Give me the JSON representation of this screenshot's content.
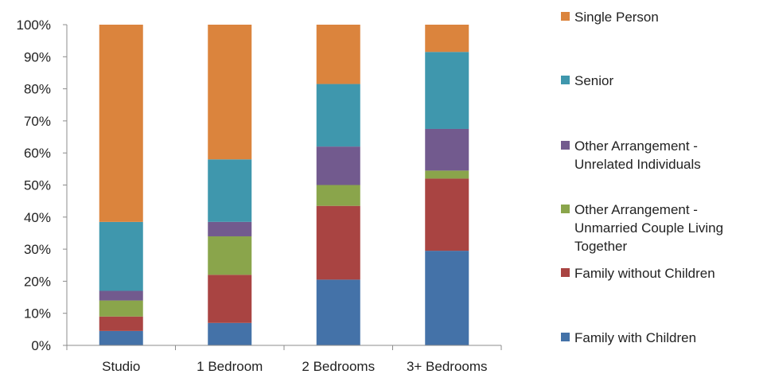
{
  "chart_data": {
    "type": "bar",
    "stacked": true,
    "percent": true,
    "categories": [
      "Studio",
      "1 Bedroom",
      "2 Bedrooms",
      "3+ Bedrooms"
    ],
    "y_ticks": [
      "0%",
      "10%",
      "20%",
      "30%",
      "40%",
      "50%",
      "60%",
      "70%",
      "80%",
      "90%",
      "100%"
    ],
    "ylim": [
      0,
      100
    ],
    "grid": false,
    "legend_position": "right",
    "series": [
      {
        "name": "Family with Children",
        "color": "#4472A8",
        "values": [
          4.5,
          7,
          20.5,
          29.5
        ]
      },
      {
        "name": "Family without Children",
        "color": "#A94442",
        "values": [
          4.5,
          15,
          23,
          22.5
        ]
      },
      {
        "name": "Other Arrangement - Unmarried Couple Living Together",
        "color": "#8AA54B",
        "values": [
          5,
          12,
          6.5,
          2.5
        ]
      },
      {
        "name": "Other Arrangement - Unrelated Individuals",
        "color": "#725A8E",
        "values": [
          3,
          4.5,
          12,
          13
        ]
      },
      {
        "name": "Senior",
        "color": "#3F97AD",
        "values": [
          21.5,
          19.5,
          19.5,
          24
        ]
      },
      {
        "name": "Single Person",
        "color": "#DB843D",
        "values": [
          61.5,
          42,
          18.5,
          8.5
        ]
      }
    ]
  },
  "legend": [
    {
      "lines": [
        "Single Person"
      ],
      "color": "#DB843D"
    },
    {
      "lines": [
        "Senior"
      ],
      "color": "#3F97AD"
    },
    {
      "lines": [
        "Other Arrangement -",
        "Unrelated Individuals"
      ],
      "color": "#725A8E"
    },
    {
      "lines": [
        "Other Arrangement -",
        "Unmarried Couple Living",
        "Together"
      ],
      "color": "#8AA54B"
    },
    {
      "lines": [
        "Family without Children"
      ],
      "color": "#A94442"
    },
    {
      "lines": [
        "Family with Children"
      ],
      "color": "#4472A8"
    }
  ]
}
